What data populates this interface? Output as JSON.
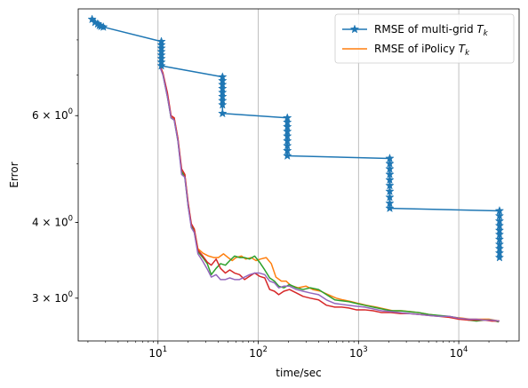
{
  "chart_data": {
    "type": "line",
    "xlabel": "time/sec",
    "ylabel": "Error",
    "xscale": "log",
    "yscale": "log",
    "xlim": [
      1.6,
      40000
    ],
    "ylim": [
      2.55,
      9.0
    ],
    "grid": "vertical major lines",
    "legend_placement": "top-right",
    "x_ticks": [
      {
        "value": 10,
        "label": "10",
        "exp": "1"
      },
      {
        "value": 100,
        "label": "10",
        "exp": "2"
      },
      {
        "value": 1000,
        "label": "10",
        "exp": "3"
      },
      {
        "value": 10000,
        "label": "10",
        "exp": "4"
      }
    ],
    "y_ticks": [
      {
        "value": 3,
        "label": "3 × 10",
        "exp": "0"
      },
      {
        "value": 4,
        "label": "4 × 10",
        "exp": "0"
      },
      {
        "value": 6,
        "label": "6 × 10",
        "exp": "0"
      }
    ],
    "legend": [
      {
        "label": "RMSE of multi-grid ",
        "sub": "k",
        "series": "multigrid"
      },
      {
        "label": "RMSE of iPolicy ",
        "sub": "k",
        "series": "ipolicy1"
      }
    ],
    "series": [
      {
        "id": "multigrid",
        "name": "RMSE of multi-grid T_k",
        "color": "#1f77b4",
        "marker": "star",
        "points": [
          [
            2.2,
            8.65
          ],
          [
            2.35,
            8.55
          ],
          [
            2.5,
            8.5
          ],
          [
            2.6,
            8.45
          ],
          [
            2.7,
            8.42
          ],
          [
            2.85,
            8.4
          ],
          [
            10.8,
            7.95
          ],
          [
            10.8,
            7.85
          ],
          [
            10.8,
            7.75
          ],
          [
            10.8,
            7.65
          ],
          [
            10.8,
            7.55
          ],
          [
            10.8,
            7.45
          ],
          [
            10.8,
            7.35
          ],
          [
            10.8,
            7.25
          ],
          [
            44,
            6.95
          ],
          [
            44,
            6.85
          ],
          [
            44,
            6.75
          ],
          [
            44,
            6.65
          ],
          [
            44,
            6.55
          ],
          [
            44,
            6.45
          ],
          [
            44,
            6.35
          ],
          [
            44,
            6.25
          ],
          [
            44,
            6.05
          ],
          [
            195,
            5.95
          ],
          [
            195,
            5.85
          ],
          [
            195,
            5.75
          ],
          [
            195,
            5.65
          ],
          [
            195,
            5.55
          ],
          [
            195,
            5.45
          ],
          [
            195,
            5.35
          ],
          [
            195,
            5.25
          ],
          [
            195,
            5.15
          ],
          [
            2050,
            5.1
          ],
          [
            2050,
            5.0
          ],
          [
            2050,
            4.9
          ],
          [
            2050,
            4.8
          ],
          [
            2050,
            4.7
          ],
          [
            2050,
            4.6
          ],
          [
            2050,
            4.5
          ],
          [
            2050,
            4.4
          ],
          [
            2050,
            4.3
          ],
          [
            2050,
            4.22
          ],
          [
            25500,
            4.18
          ],
          [
            25500,
            4.1
          ],
          [
            25500,
            4.02
          ],
          [
            25500,
            3.95
          ],
          [
            25500,
            3.88
          ],
          [
            25500,
            3.82
          ],
          [
            25500,
            3.75
          ],
          [
            25500,
            3.68
          ],
          [
            25500,
            3.62
          ],
          [
            25500,
            3.56
          ],
          [
            25500,
            3.5
          ]
        ]
      },
      {
        "id": "ipolicy1",
        "name": "RMSE of iPolicy T_k",
        "color": "#ff7f0e",
        "marker": "none",
        "points": [
          [
            10.5,
            7.25
          ],
          [
            11.2,
            7.05
          ],
          [
            12.4,
            6.5
          ],
          [
            13.5,
            5.95
          ],
          [
            14.5,
            5.95
          ],
          [
            15.8,
            5.5
          ],
          [
            17.2,
            4.85
          ],
          [
            18.5,
            4.8
          ],
          [
            20,
            4.3
          ],
          [
            21.5,
            3.95
          ],
          [
            23,
            3.9
          ],
          [
            25,
            3.62
          ],
          [
            28,
            3.56
          ],
          [
            32,
            3.52
          ],
          [
            36,
            3.5
          ],
          [
            40,
            3.5
          ],
          [
            45,
            3.55
          ],
          [
            50,
            3.5
          ],
          [
            55,
            3.46
          ],
          [
            60,
            3.5
          ],
          [
            68,
            3.52
          ],
          [
            75,
            3.48
          ],
          [
            85,
            3.5
          ],
          [
            95,
            3.46
          ],
          [
            105,
            3.48
          ],
          [
            120,
            3.5
          ],
          [
            135,
            3.42
          ],
          [
            150,
            3.25
          ],
          [
            170,
            3.2
          ],
          [
            190,
            3.2
          ],
          [
            210,
            3.15
          ],
          [
            250,
            3.12
          ],
          [
            300,
            3.14
          ],
          [
            350,
            3.1
          ],
          [
            420,
            3.08
          ],
          [
            500,
            3.04
          ],
          [
            600,
            3.0
          ],
          [
            700,
            2.98
          ],
          [
            850,
            2.96
          ],
          [
            1000,
            2.94
          ],
          [
            1200,
            2.92
          ],
          [
            1500,
            2.9
          ],
          [
            1800,
            2.88
          ],
          [
            2200,
            2.86
          ],
          [
            2700,
            2.86
          ],
          [
            3300,
            2.85
          ],
          [
            4000,
            2.84
          ],
          [
            5000,
            2.82
          ],
          [
            6000,
            2.81
          ],
          [
            7500,
            2.8
          ],
          [
            9000,
            2.79
          ],
          [
            11000,
            2.78
          ],
          [
            13000,
            2.77
          ],
          [
            16000,
            2.77
          ],
          [
            20000,
            2.77
          ],
          [
            25500,
            2.75
          ]
        ]
      },
      {
        "id": "ipolicy2",
        "color": "#2ca02c",
        "marker": "none",
        "points": [
          [
            10.5,
            7.25
          ],
          [
            11.2,
            7.0
          ],
          [
            12.4,
            6.45
          ],
          [
            13.5,
            5.95
          ],
          [
            14.5,
            5.9
          ],
          [
            15.8,
            5.45
          ],
          [
            17.2,
            4.85
          ],
          [
            18.5,
            4.75
          ],
          [
            20,
            4.25
          ],
          [
            21.5,
            3.95
          ],
          [
            23,
            3.85
          ],
          [
            25,
            3.58
          ],
          [
            28,
            3.5
          ],
          [
            31,
            3.42
          ],
          [
            34,
            3.28
          ],
          [
            38,
            3.36
          ],
          [
            42,
            3.42
          ],
          [
            47,
            3.4
          ],
          [
            52,
            3.46
          ],
          [
            58,
            3.52
          ],
          [
            65,
            3.5
          ],
          [
            73,
            3.5
          ],
          [
            82,
            3.48
          ],
          [
            92,
            3.52
          ],
          [
            103,
            3.44
          ],
          [
            116,
            3.34
          ],
          [
            130,
            3.24
          ],
          [
            145,
            3.2
          ],
          [
            160,
            3.14
          ],
          [
            180,
            3.12
          ],
          [
            205,
            3.16
          ],
          [
            240,
            3.12
          ],
          [
            280,
            3.1
          ],
          [
            330,
            3.12
          ],
          [
            400,
            3.1
          ],
          [
            480,
            3.04
          ],
          [
            580,
            2.98
          ],
          [
            680,
            2.97
          ],
          [
            800,
            2.96
          ],
          [
            950,
            2.94
          ],
          [
            1150,
            2.92
          ],
          [
            1400,
            2.9
          ],
          [
            1700,
            2.88
          ],
          [
            2100,
            2.86
          ],
          [
            2600,
            2.86
          ],
          [
            3200,
            2.85
          ],
          [
            4000,
            2.84
          ],
          [
            5000,
            2.82
          ],
          [
            6300,
            2.81
          ],
          [
            8000,
            2.8
          ],
          [
            10000,
            2.78
          ],
          [
            12500,
            2.76
          ],
          [
            15000,
            2.75
          ],
          [
            18000,
            2.76
          ],
          [
            21500,
            2.76
          ],
          [
            25000,
            2.74
          ]
        ]
      },
      {
        "id": "ipolicy3",
        "color": "#d62728",
        "marker": "none",
        "points": [
          [
            10.5,
            7.25
          ],
          [
            11.2,
            7.05
          ],
          [
            12.4,
            6.55
          ],
          [
            13.5,
            6.0
          ],
          [
            14.5,
            5.95
          ],
          [
            15.8,
            5.5
          ],
          [
            17.2,
            4.9
          ],
          [
            18.5,
            4.8
          ],
          [
            20,
            4.3
          ],
          [
            21.5,
            3.98
          ],
          [
            23,
            3.9
          ],
          [
            25,
            3.6
          ],
          [
            28,
            3.52
          ],
          [
            31,
            3.44
          ],
          [
            34,
            3.4
          ],
          [
            38,
            3.48
          ],
          [
            42,
            3.36
          ],
          [
            47,
            3.3
          ],
          [
            52,
            3.34
          ],
          [
            58,
            3.3
          ],
          [
            65,
            3.28
          ],
          [
            73,
            3.22
          ],
          [
            82,
            3.26
          ],
          [
            92,
            3.3
          ],
          [
            103,
            3.26
          ],
          [
            116,
            3.24
          ],
          [
            130,
            3.1
          ],
          [
            145,
            3.08
          ],
          [
            160,
            3.04
          ],
          [
            180,
            3.08
          ],
          [
            205,
            3.1
          ],
          [
            240,
            3.06
          ],
          [
            280,
            3.02
          ],
          [
            330,
            3.0
          ],
          [
            400,
            2.98
          ],
          [
            480,
            2.92
          ],
          [
            580,
            2.9
          ],
          [
            680,
            2.9
          ],
          [
            800,
            2.89
          ],
          [
            950,
            2.87
          ],
          [
            1150,
            2.87
          ],
          [
            1400,
            2.86
          ],
          [
            1700,
            2.84
          ],
          [
            2100,
            2.84
          ],
          [
            2600,
            2.83
          ],
          [
            3200,
            2.83
          ],
          [
            4000,
            2.82
          ],
          [
            5000,
            2.81
          ],
          [
            6300,
            2.8
          ],
          [
            8000,
            2.79
          ],
          [
            10000,
            2.77
          ],
          [
            12500,
            2.76
          ],
          [
            15000,
            2.76
          ],
          [
            18000,
            2.76
          ],
          [
            21500,
            2.75
          ],
          [
            25500,
            2.75
          ]
        ]
      },
      {
        "id": "ipolicy4",
        "color": "#9467bd",
        "marker": "none",
        "points": [
          [
            10.5,
            7.2
          ],
          [
            11.2,
            7.0
          ],
          [
            12.4,
            6.45
          ],
          [
            13.5,
            5.95
          ],
          [
            14.5,
            5.9
          ],
          [
            15.8,
            5.45
          ],
          [
            17.2,
            4.8
          ],
          [
            18.5,
            4.75
          ],
          [
            20,
            4.25
          ],
          [
            21.5,
            3.92
          ],
          [
            23,
            3.85
          ],
          [
            25,
            3.55
          ],
          [
            28,
            3.45
          ],
          [
            31,
            3.35
          ],
          [
            34,
            3.25
          ],
          [
            38,
            3.28
          ],
          [
            42,
            3.22
          ],
          [
            47,
            3.22
          ],
          [
            52,
            3.24
          ],
          [
            58,
            3.22
          ],
          [
            65,
            3.22
          ],
          [
            73,
            3.25
          ],
          [
            82,
            3.28
          ],
          [
            92,
            3.3
          ],
          [
            103,
            3.3
          ],
          [
            116,
            3.28
          ],
          [
            130,
            3.2
          ],
          [
            145,
            3.18
          ],
          [
            160,
            3.12
          ],
          [
            180,
            3.14
          ],
          [
            205,
            3.14
          ],
          [
            240,
            3.1
          ],
          [
            280,
            3.08
          ],
          [
            330,
            3.06
          ],
          [
            400,
            3.04
          ],
          [
            480,
            2.98
          ],
          [
            580,
            2.94
          ],
          [
            680,
            2.93
          ],
          [
            800,
            2.92
          ],
          [
            950,
            2.91
          ],
          [
            1150,
            2.9
          ],
          [
            1400,
            2.88
          ],
          [
            1700,
            2.86
          ],
          [
            2100,
            2.85
          ],
          [
            2600,
            2.84
          ],
          [
            3200,
            2.83
          ],
          [
            4000,
            2.82
          ],
          [
            5000,
            2.81
          ],
          [
            6300,
            2.8
          ],
          [
            8000,
            2.8
          ],
          [
            10000,
            2.78
          ],
          [
            12500,
            2.77
          ],
          [
            15000,
            2.77
          ],
          [
            18000,
            2.76
          ],
          [
            21500,
            2.76
          ],
          [
            25500,
            2.75
          ]
        ]
      }
    ]
  }
}
